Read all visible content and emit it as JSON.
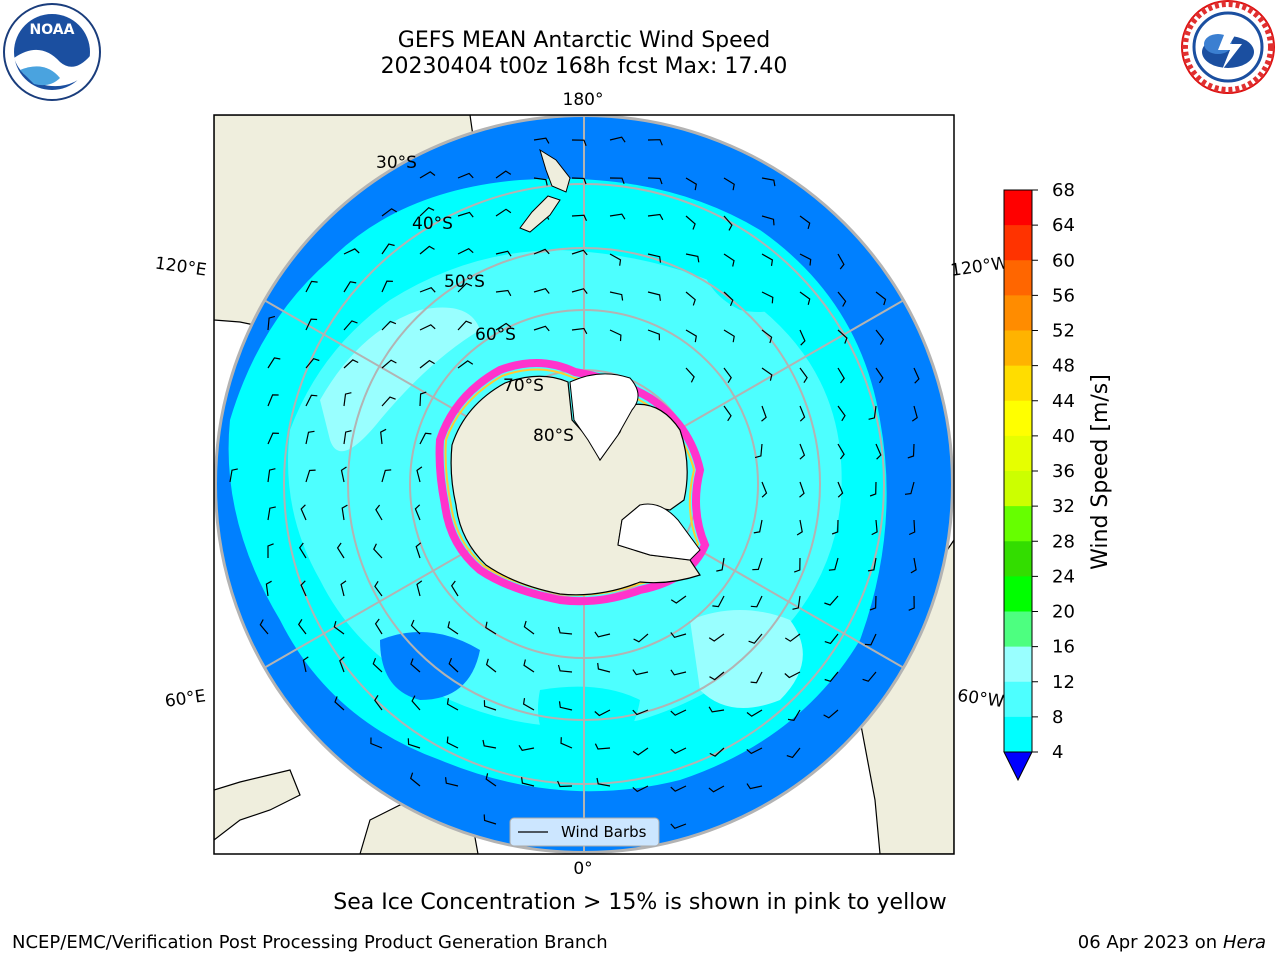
{
  "title": {
    "line1": "GEFS MEAN Antarctic Wind Speed",
    "line2": "20230404 t00z 168h fcst   Max: 17.40"
  },
  "logos": {
    "left": "noara-logo",
    "right": "nws-logo",
    "left_text": "NOAA"
  },
  "map": {
    "projection": "south-polar-stereographic",
    "longitude_labels": [
      "180°",
      "120°E",
      "120°W",
      "60°E",
      "60°W",
      "0°"
    ],
    "latitude_labels": [
      "30°S",
      "40°S",
      "50°S",
      "60°S",
      "70°S",
      "80°S"
    ],
    "legend_label": "Wind Barbs",
    "colors": {
      "land": "#efeedd",
      "ocean_low": "#0080ff",
      "ocean_mid": "#00ffff",
      "ocean_high": "#4dffff",
      "sea_ice_edge": "#ff33cc",
      "grid": "#b3b3b3"
    }
  },
  "colorbar": {
    "label": "Wind Speed [m/s]",
    "ticks": [
      "68",
      "64",
      "60",
      "56",
      "52",
      "48",
      "44",
      "40",
      "36",
      "32",
      "28",
      "24",
      "20",
      "16",
      "12",
      "8",
      "4"
    ],
    "colors": [
      "#ff0000",
      "#ff3300",
      "#ff6600",
      "#ff8c00",
      "#ffb300",
      "#ffdd00",
      "#ffff00",
      "#e6ff00",
      "#ccff00",
      "#66ff00",
      "#33dd00",
      "#00ff00",
      "#4dff80",
      "#99ffff",
      "#4dffff",
      "#00ffff",
      "#0080ff"
    ],
    "extend_color": "#0000ff"
  },
  "caption": "Sea Ice Concentration > 15% is shown in pink to yellow",
  "footer": {
    "left": "NCEP/EMC/Verification Post Processing Product Generation Branch",
    "right_date": "06 Apr 2023 on ",
    "right_host": "Hera"
  }
}
